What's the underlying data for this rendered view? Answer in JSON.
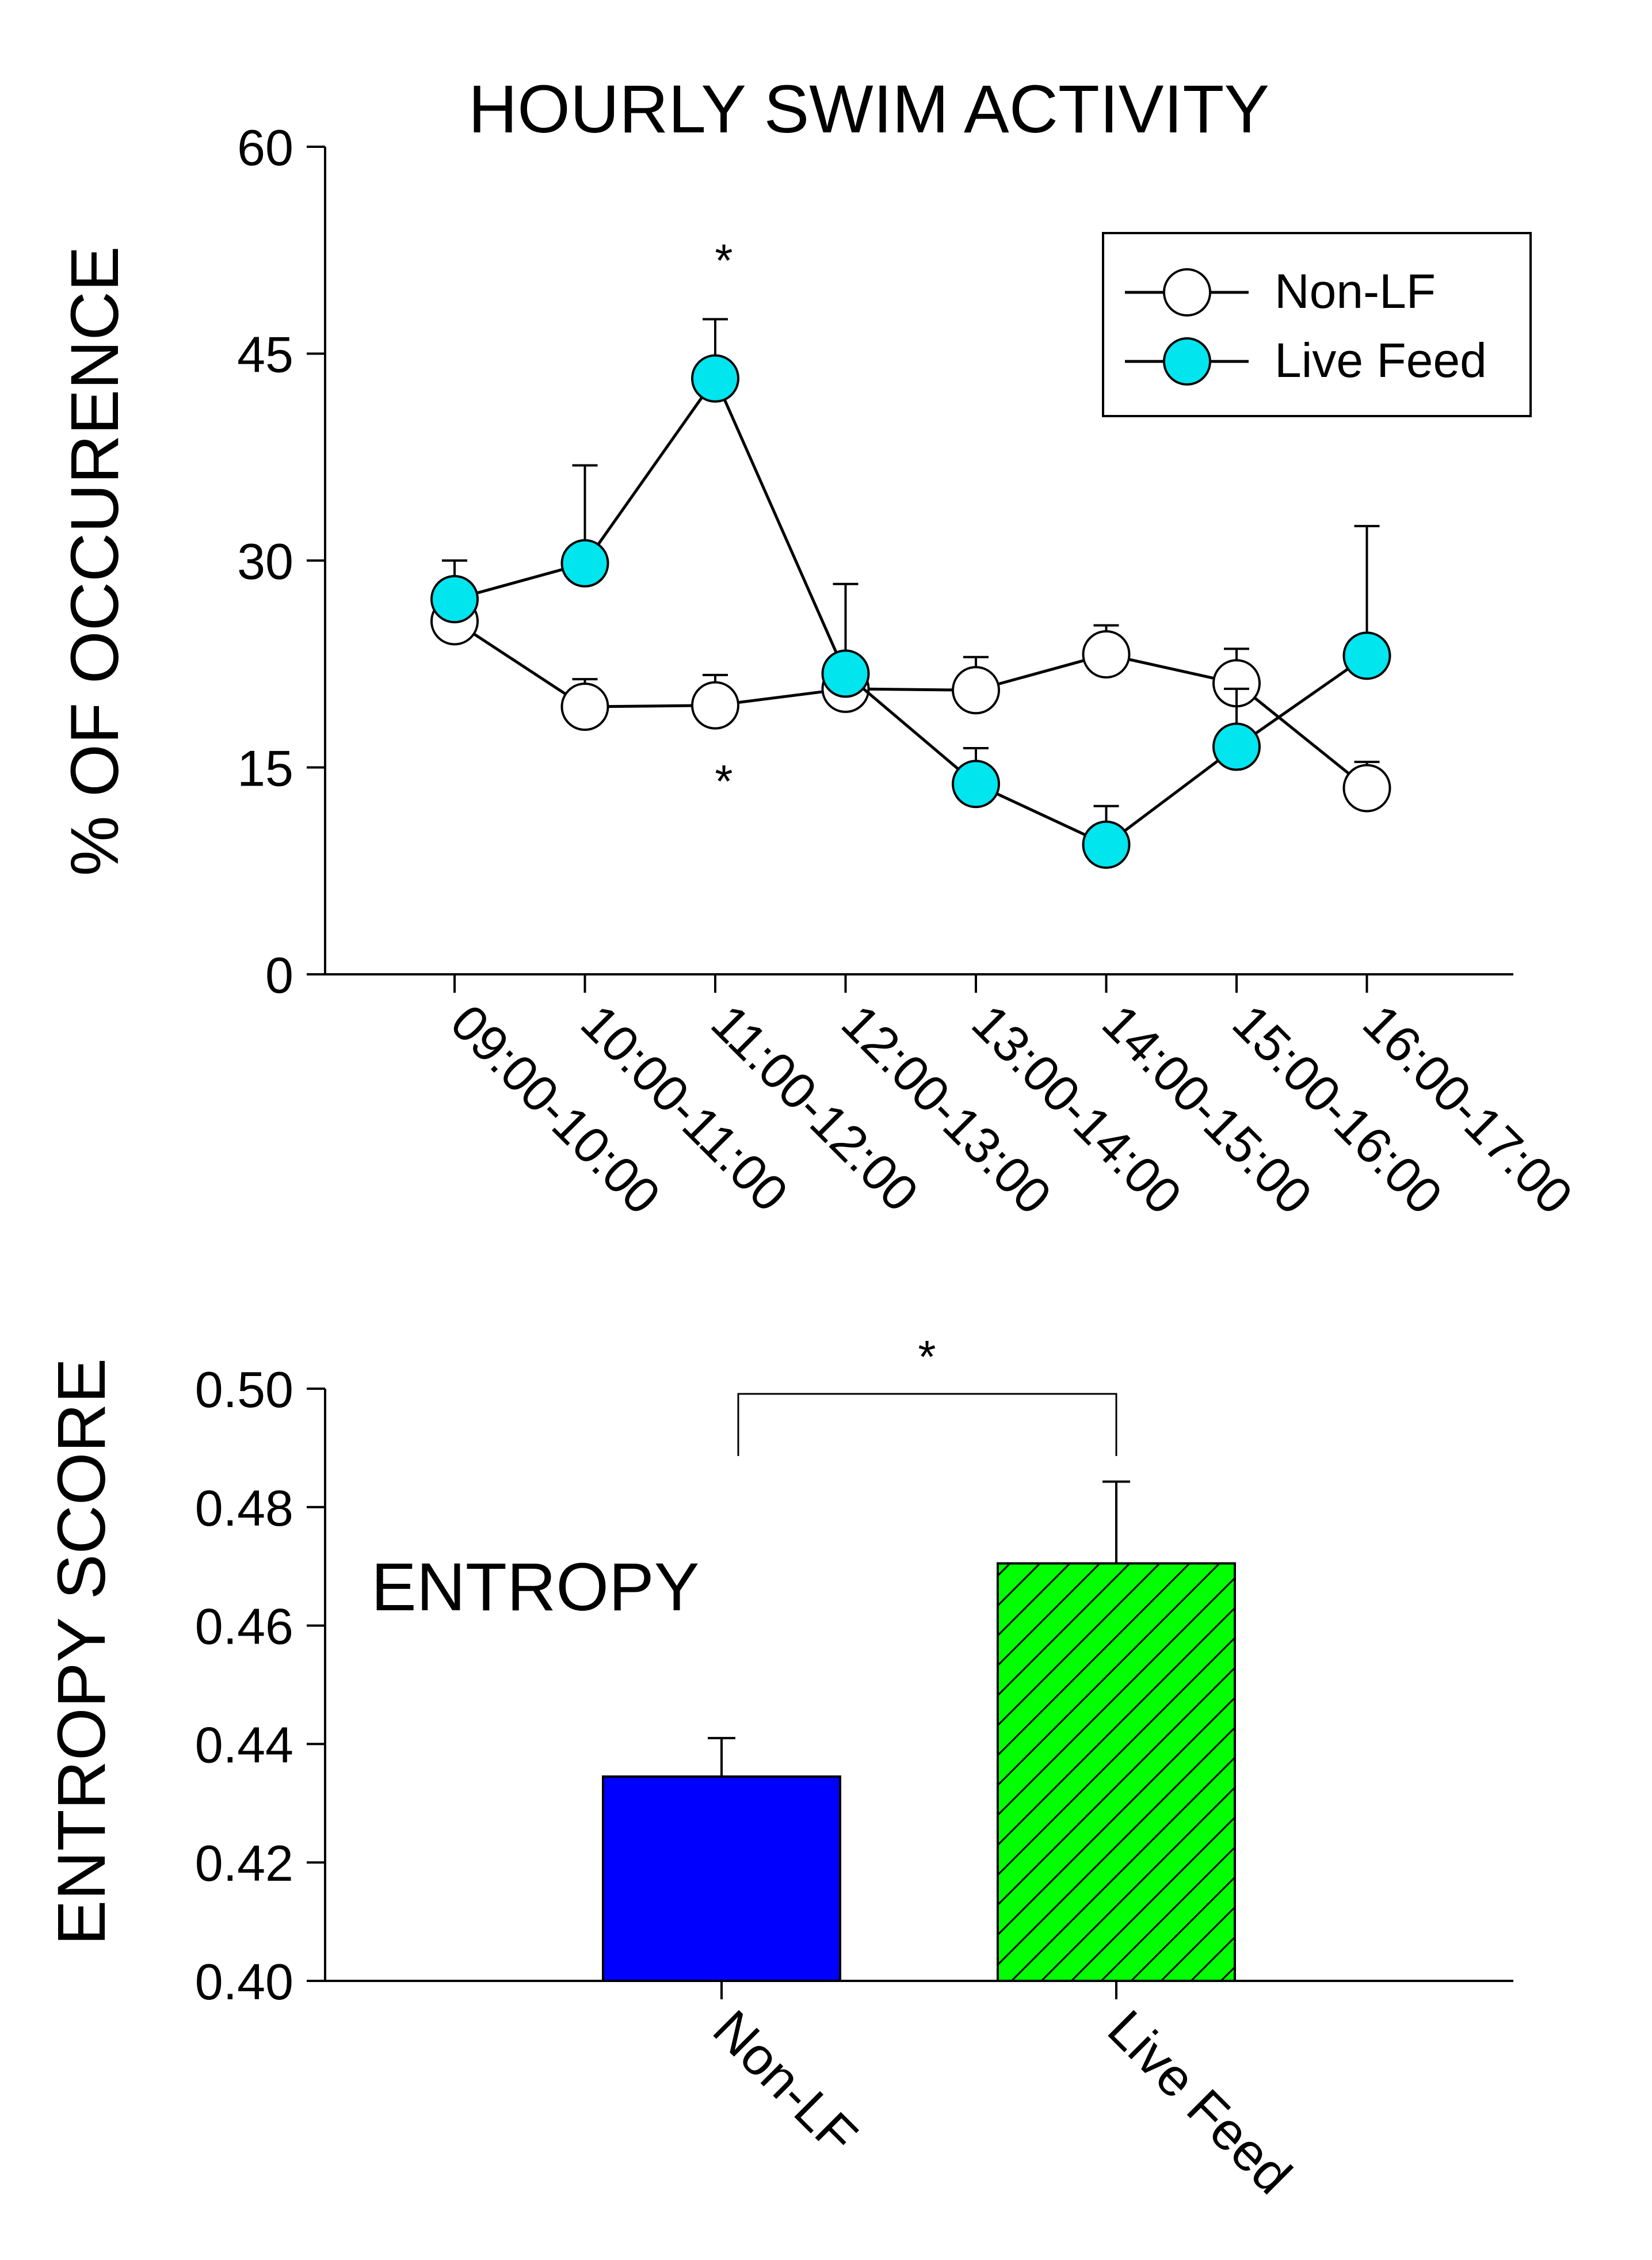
{
  "chart_data": [
    {
      "type": "line",
      "title": "HOURLY SWIM ACTIVITY",
      "xlabel": "",
      "ylabel": "% OF OCCURENCE",
      "ylim": [
        0,
        60
      ],
      "yticks": [
        "0",
        "15",
        "30",
        "45",
        "60"
      ],
      "categories": [
        "09:00-10:00",
        "10:00-11:00",
        "11:00-12:00",
        "12:00-13:00",
        "13:00-14:00",
        "14:00-15:00",
        "15:00-16:00",
        "16:00-17:00"
      ],
      "series": [
        {
          "name": "Non-LF",
          "marker_fill": "#ffffff",
          "values": [
            25.6,
            19.4,
            19.5,
            20.7,
            20.6,
            23.2,
            21.1,
            13.5
          ],
          "errors": [
            4.4,
            2.0,
            2.2,
            2.0,
            2.4,
            2.1,
            2.5,
            1.9
          ]
        },
        {
          "name": "Live Feed",
          "marker_fill": "#00e5ee",
          "values": [
            27.2,
            29.8,
            43.2,
            21.8,
            13.8,
            9.4,
            16.5,
            23.1
          ],
          "errors": [
            2.8,
            7.1,
            4.3,
            6.5,
            2.6,
            2.8,
            4.2,
            9.4
          ]
        }
      ],
      "legend": {
        "position": "top-right",
        "entries": [
          "Non-LF",
          "Live Feed"
        ]
      },
      "annotations": [
        {
          "text": "*",
          "category": "11:00-12:00",
          "y": 51.5
        },
        {
          "text": "*",
          "category": "11:00-12:00",
          "y": 14.5
        }
      ]
    },
    {
      "type": "bar",
      "title": "ENTROPY",
      "xlabel": "",
      "ylabel": "ENTROPY SCORE",
      "ylim": [
        0.4,
        0.5
      ],
      "yticks": [
        "0.40",
        "0.42",
        "0.44",
        "0.46",
        "0.48",
        "0.50"
      ],
      "categories": [
        "Non-LF",
        "Live Feed"
      ],
      "values": [
        0.4345,
        0.4705
      ],
      "errors": [
        0.0065,
        0.0138
      ],
      "bar_colors": [
        "#0000ff",
        "#00ff00"
      ],
      "bar_patterns": [
        "solid",
        "diagonal-hatch"
      ],
      "significance": {
        "text": "*",
        "between": [
          "Non-LF",
          "Live Feed"
        ]
      }
    }
  ]
}
